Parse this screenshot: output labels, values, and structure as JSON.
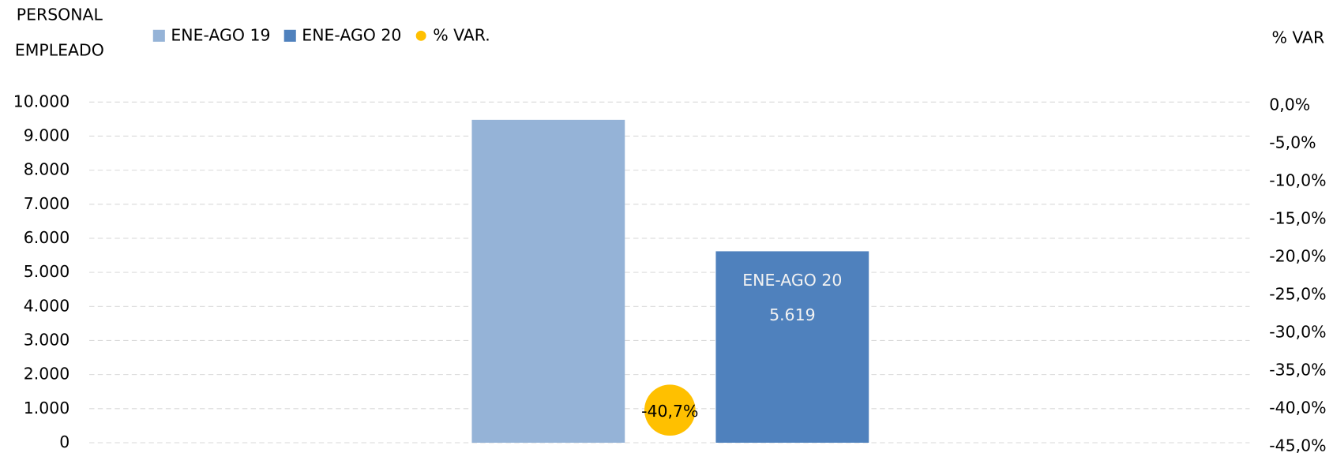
{
  "chart_data": {
    "type": "bar",
    "y_label": [
      "PERSONAL",
      "EMPLEADO"
    ],
    "y2_label": "% VAR",
    "categories": [
      null
    ],
    "series": [
      {
        "name": "ENE-AGO 19",
        "color": "#95b3d7",
        "values": [
          9477
        ]
      },
      {
        "name": "ENE-AGO 20",
        "color": "#4f81bd",
        "values": [
          5619
        ],
        "value_labels": [
          "5.619"
        ]
      },
      {
        "name": "% VAR.",
        "color": "#ffc000",
        "axis": "y2",
        "values": [
          -40.7
        ],
        "value_labels": [
          "-40,7%"
        ]
      }
    ],
    "ylim": [
      0,
      10000
    ],
    "yticks": [
      0,
      {
        "value": 1000,
        "label": "1.000"
      },
      {
        "value": 2000,
        "label": "2.000"
      },
      {
        "value": 3000,
        "label": "3.000"
      },
      {
        "value": 4000,
        "label": "4.000"
      },
      {
        "value": 5000,
        "label": "5.000"
      },
      {
        "value": 6000,
        "label": "6.000"
      },
      {
        "value": 7000,
        "label": "7.000"
      },
      {
        "value": 8000,
        "label": "8.000"
      },
      {
        "value": 9000,
        "label": "9.000"
      },
      {
        "value": 10000,
        "label": "10.000"
      }
    ],
    "y2lim": [
      -45,
      0
    ],
    "y2ticks": [
      {
        "value": -45,
        "label": "-45,0%"
      },
      {
        "value": -40,
        "label": "-40,0%"
      },
      {
        "value": -35,
        "label": "-35,0%"
      },
      {
        "value": -30,
        "label": "-30,0%"
      },
      {
        "value": -25,
        "label": "-25,0%"
      },
      {
        "value": -20,
        "label": "-20,0%"
      },
      {
        "value": -15,
        "label": "-15,0%"
      },
      {
        "value": -10,
        "label": "-10,0%"
      },
      {
        "value": -5,
        "label": "-5,0%"
      },
      {
        "value": 0,
        "label": "0,0%"
      }
    ],
    "grid": true,
    "legend": "top"
  }
}
